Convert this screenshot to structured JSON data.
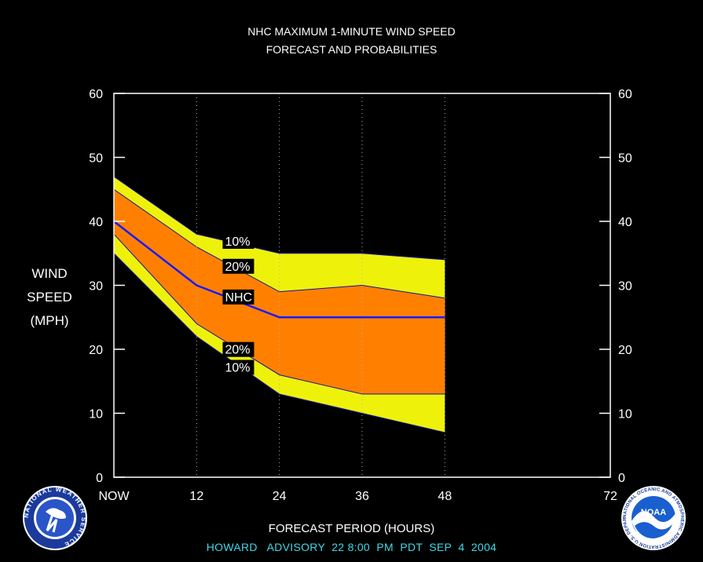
{
  "chart_data": {
    "type": "area",
    "title": "NHC MAXIMUM 1-MINUTE WIND SPEED",
    "subtitle": "FORECAST AND PROBABILITIES",
    "ylabel": [
      "WIND",
      "SPEED",
      "(MPH)"
    ],
    "xlabel": "FORECAST PERIOD (HOURS)",
    "footer": "HOWARD   ADVISORY  22 8:00  PM  PDT  SEP  4  2004",
    "x": [
      0,
      12,
      24,
      36,
      48
    ],
    "xlim": [
      0,
      72
    ],
    "ylim": [
      0,
      60
    ],
    "xticks": [
      {
        "value": 0,
        "label": "NOW"
      },
      {
        "value": 12,
        "label": "12"
      },
      {
        "value": 24,
        "label": "24"
      },
      {
        "value": 36,
        "label": "36"
      },
      {
        "value": 48,
        "label": "48"
      },
      {
        "value": 72,
        "label": "72"
      }
    ],
    "yticks": [
      0,
      10,
      20,
      30,
      40,
      50,
      60
    ],
    "grid_x": [
      12,
      24,
      36,
      48
    ],
    "series": [
      {
        "name": "10%",
        "values": [
          47,
          38,
          35,
          35,
          34
        ]
      },
      {
        "name": "20%",
        "values": [
          45,
          36,
          29,
          30,
          28
        ]
      },
      {
        "name": "NHC",
        "values": [
          40,
          30,
          25,
          25,
          25
        ]
      },
      {
        "name": "20%",
        "values": [
          38,
          24,
          16,
          13,
          13
        ]
      },
      {
        "name": "10%",
        "values": [
          35,
          22,
          13,
          10,
          7
        ]
      }
    ],
    "colors": {
      "outer_band": "#eef20a",
      "inner_band": "#ff8000",
      "nhc_line": "#1a1aff",
      "band_edge": "#1010aa",
      "axis": "#ffffff",
      "grid": "#b0b0b0",
      "footer": "#40d8e8"
    }
  },
  "logos": {
    "left": {
      "icon": "nws-logo-icon",
      "text": "NATIONAL WEATHER SERVICE"
    },
    "right": {
      "icon": "noaa-logo-icon",
      "center": "NOAA",
      "text": "NATIONAL OCEANIC AND ATMOSPHERIC ADMINISTRATION U.S. DEPARTMENT OF COMMERCE"
    }
  }
}
